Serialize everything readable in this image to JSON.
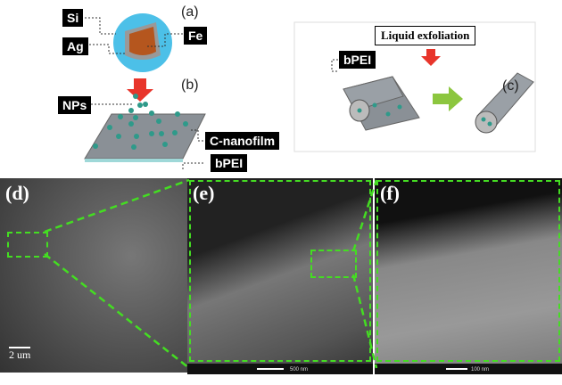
{
  "panel_a": {
    "tag": "(a)",
    "labels": {
      "si": "Si",
      "ag": "Ag",
      "fe": "Fe"
    }
  },
  "panel_b": {
    "tag": "(b)",
    "labels": {
      "nps": "NPs",
      "film": "C-nanofilm",
      "bpei": "bPEI"
    }
  },
  "panel_c": {
    "tag": "(c)",
    "title": "Liquid exfoliation",
    "bpei": "bPEI"
  },
  "panel_d": {
    "tag": "(d)",
    "scale": "2 um"
  },
  "panel_e": {
    "tag": "(e)",
    "scale": "500 nm"
  },
  "panel_f": {
    "tag": "(f)",
    "scale": "100 nm"
  },
  "colors": {
    "arrow_red": "#e8352b",
    "arrow_green": "#8cc63f",
    "zoom_box": "#44dd22",
    "particle": "#2f9a8a"
  }
}
